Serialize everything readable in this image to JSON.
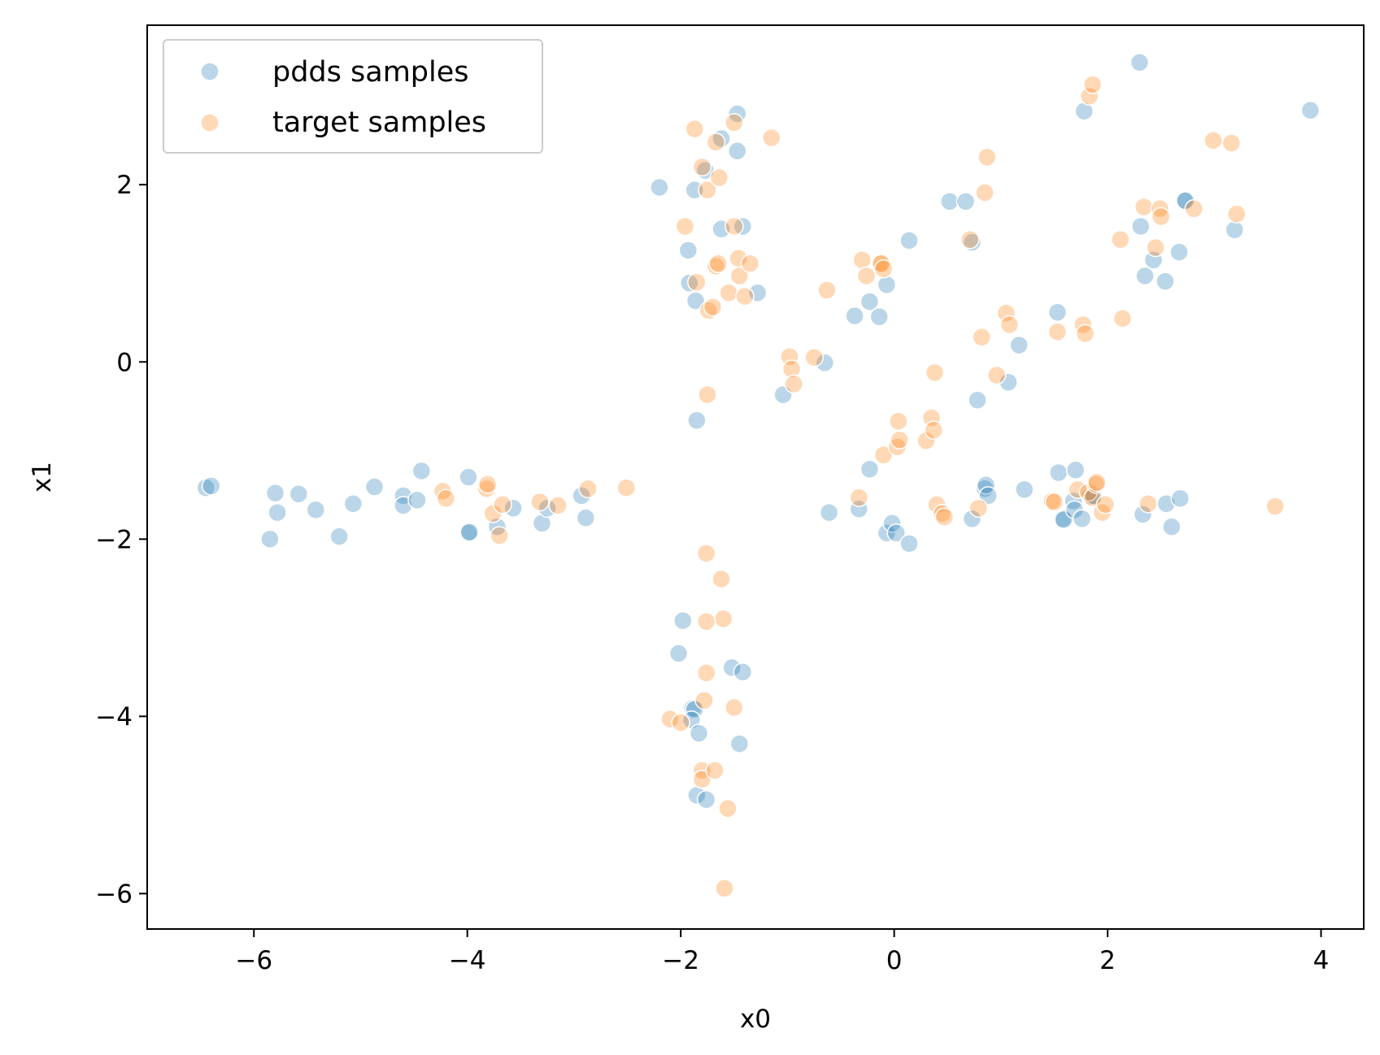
{
  "chart_data": {
    "type": "scatter",
    "xlabel": "x0",
    "ylabel": "x1",
    "xlim": [
      -7.0,
      4.4
    ],
    "ylim": [
      -6.4,
      3.8
    ],
    "xticks": [
      -6,
      -4,
      -2,
      0,
      2,
      4
    ],
    "yticks": [
      -6,
      -4,
      -2,
      0,
      2
    ],
    "xtick_labels": [
      "−6",
      "−4",
      "−2",
      "0",
      "2",
      "4"
    ],
    "ytick_labels": [
      "−6",
      "−4",
      "−2",
      "0",
      "2"
    ],
    "grid": false,
    "legend": "upper-left",
    "series": [
      {
        "name": "pdds samples",
        "color": "#1f77b4",
        "points": [
          [
            -6.45,
            -1.42
          ],
          [
            -6.4,
            -1.4
          ],
          [
            -5.85,
            -2.0
          ],
          [
            -5.8,
            -1.48
          ],
          [
            -5.78,
            -1.7
          ],
          [
            -5.58,
            -1.49
          ],
          [
            -5.42,
            -1.67
          ],
          [
            -5.2,
            -1.97
          ],
          [
            -5.07,
            -1.6
          ],
          [
            -4.87,
            -1.41
          ],
          [
            -4.6,
            -1.51
          ],
          [
            -4.6,
            -1.62
          ],
          [
            -4.47,
            -1.56
          ],
          [
            -4.43,
            -1.23
          ],
          [
            -3.99,
            -1.3
          ],
          [
            -3.99,
            -1.93
          ],
          [
            -3.98,
            -1.92
          ],
          [
            -3.72,
            -1.86
          ],
          [
            -3.57,
            -1.65
          ],
          [
            -3.3,
            -1.82
          ],
          [
            -3.25,
            -1.65
          ],
          [
            -2.93,
            -1.51
          ],
          [
            -2.89,
            -1.76
          ],
          [
            -2.2,
            1.97
          ],
          [
            -1.93,
            1.26
          ],
          [
            -1.92,
            0.89
          ],
          [
            -1.87,
            1.94
          ],
          [
            -1.86,
            0.69
          ],
          [
            -1.77,
            2.16
          ],
          [
            -1.62,
            2.52
          ],
          [
            -1.62,
            1.5
          ],
          [
            -1.47,
            2.8
          ],
          [
            -1.47,
            2.38
          ],
          [
            -1.42,
            1.53
          ],
          [
            -1.28,
            0.78
          ],
          [
            -1.85,
            -0.66
          ],
          [
            -1.98,
            -2.92
          ],
          [
            -2.02,
            -3.29
          ],
          [
            -1.89,
            -3.91
          ],
          [
            -1.87,
            -3.92
          ],
          [
            -1.9,
            -4.04
          ],
          [
            -1.83,
            -4.19
          ],
          [
            -1.85,
            -4.89
          ],
          [
            -1.76,
            -4.94
          ],
          [
            -1.52,
            -3.45
          ],
          [
            -1.42,
            -3.5
          ],
          [
            -1.45,
            -4.31
          ],
          [
            -1.04,
            -0.37
          ],
          [
            -0.65,
            -0.01
          ],
          [
            -0.37,
            0.52
          ],
          [
            -0.23,
            0.68
          ],
          [
            -0.14,
            0.51
          ],
          [
            -0.07,
            0.87
          ],
          [
            0.14,
            1.37
          ],
          [
            0.52,
            1.81
          ],
          [
            0.67,
            1.81
          ],
          [
            0.73,
            1.35
          ],
          [
            0.78,
            -0.43
          ],
          [
            1.07,
            -0.23
          ],
          [
            1.17,
            0.19
          ],
          [
            1.53,
            0.56
          ],
          [
            -0.61,
            -1.7
          ],
          [
            -0.33,
            -1.66
          ],
          [
            -0.23,
            -1.21
          ],
          [
            -0.07,
            -1.93
          ],
          [
            -0.02,
            -1.82
          ],
          [
            0.02,
            -1.93
          ],
          [
            0.14,
            -2.05
          ],
          [
            0.73,
            -1.77
          ],
          [
            0.85,
            -1.43
          ],
          [
            0.86,
            -1.39
          ],
          [
            0.88,
            -1.51
          ],
          [
            1.22,
            -1.44
          ],
          [
            1.54,
            -1.25
          ],
          [
            1.58,
            -1.77
          ],
          [
            1.59,
            -1.78
          ],
          [
            1.68,
            -1.57
          ],
          [
            1.69,
            -1.67
          ],
          [
            1.7,
            -1.22
          ],
          [
            1.76,
            -1.77
          ],
          [
            1.84,
            -1.52
          ],
          [
            1.87,
            -1.51
          ],
          [
            1.78,
            2.83
          ],
          [
            2.3,
            3.38
          ],
          [
            2.31,
            1.53
          ],
          [
            2.35,
            0.97
          ],
          [
            2.43,
            1.15
          ],
          [
            2.54,
            0.91
          ],
          [
            2.67,
            1.24
          ],
          [
            2.72,
            1.82
          ],
          [
            2.73,
            1.82
          ],
          [
            3.19,
            1.49
          ],
          [
            3.9,
            2.84
          ],
          [
            2.33,
            -1.72
          ],
          [
            2.55,
            -1.6
          ],
          [
            2.6,
            -1.86
          ],
          [
            2.68,
            -1.54
          ]
        ]
      },
      {
        "name": "target samples",
        "color": "#ff7f0e",
        "points": [
          [
            -4.23,
            -1.46
          ],
          [
            -4.2,
            -1.54
          ],
          [
            -3.82,
            -1.43
          ],
          [
            -3.81,
            -1.38
          ],
          [
            -3.76,
            -1.71
          ],
          [
            -3.7,
            -1.96
          ],
          [
            -3.67,
            -1.61
          ],
          [
            -3.32,
            -1.58
          ],
          [
            -3.15,
            -1.62
          ],
          [
            -2.87,
            -1.43
          ],
          [
            -2.51,
            -1.42
          ],
          [
            -1.87,
            2.63
          ],
          [
            -1.96,
            1.53
          ],
          [
            -1.85,
            0.9
          ],
          [
            -1.8,
            2.2
          ],
          [
            -1.75,
            1.94
          ],
          [
            -1.74,
            0.58
          ],
          [
            -1.7,
            0.62
          ],
          [
            -1.67,
            2.48
          ],
          [
            -1.67,
            1.08
          ],
          [
            -1.65,
            1.11
          ],
          [
            -1.64,
            2.08
          ],
          [
            -1.55,
            0.78
          ],
          [
            -1.5,
            2.7
          ],
          [
            -1.5,
            1.53
          ],
          [
            -1.46,
            1.17
          ],
          [
            -1.45,
            0.97
          ],
          [
            -1.4,
            0.74
          ],
          [
            -1.35,
            1.11
          ],
          [
            -1.15,
            2.53
          ],
          [
            -1.75,
            -0.37
          ],
          [
            -1.76,
            -2.16
          ],
          [
            -1.62,
            -2.45
          ],
          [
            -1.6,
            -2.9
          ],
          [
            -1.76,
            -2.93
          ],
          [
            -1.76,
            -3.51
          ],
          [
            -1.78,
            -3.82
          ],
          [
            -2.1,
            -4.03
          ],
          [
            -2.0,
            -4.07
          ],
          [
            -1.5,
            -3.9
          ],
          [
            -1.8,
            -4.61
          ],
          [
            -1.8,
            -4.71
          ],
          [
            -1.68,
            -4.61
          ],
          [
            -1.56,
            -5.04
          ],
          [
            -1.59,
            -5.94
          ],
          [
            -0.98,
            0.06
          ],
          [
            -0.96,
            -0.08
          ],
          [
            -0.94,
            -0.25
          ],
          [
            -0.75,
            0.05
          ],
          [
            -0.63,
            0.81
          ],
          [
            -0.3,
            1.15
          ],
          [
            -0.26,
            0.97
          ],
          [
            -0.13,
            1.11
          ],
          [
            -0.12,
            1.11
          ],
          [
            -0.1,
            1.05
          ],
          [
            -0.33,
            -1.53
          ],
          [
            -0.1,
            -1.05
          ],
          [
            0.03,
            -0.96
          ],
          [
            0.04,
            -0.67
          ],
          [
            0.05,
            -0.88
          ],
          [
            0.3,
            -0.89
          ],
          [
            0.35,
            -0.63
          ],
          [
            0.37,
            -0.77
          ],
          [
            0.38,
            -0.12
          ],
          [
            0.4,
            -1.61
          ],
          [
            0.45,
            -1.71
          ],
          [
            0.47,
            -1.75
          ],
          [
            0.71,
            1.38
          ],
          [
            0.79,
            -1.65
          ],
          [
            0.82,
            0.28
          ],
          [
            0.85,
            1.91
          ],
          [
            0.87,
            2.31
          ],
          [
            0.96,
            -0.15
          ],
          [
            1.05,
            0.55
          ],
          [
            1.08,
            0.42
          ],
          [
            1.48,
            -1.57
          ],
          [
            1.5,
            -1.58
          ],
          [
            1.53,
            0.34
          ],
          [
            1.72,
            -1.44
          ],
          [
            1.77,
            0.42
          ],
          [
            1.79,
            0.32
          ],
          [
            1.82,
            -1.47
          ],
          [
            1.83,
            3.0
          ],
          [
            1.86,
            3.13
          ],
          [
            1.86,
            -1.53
          ],
          [
            1.89,
            -1.38
          ],
          [
            1.9,
            -1.36
          ],
          [
            1.95,
            -1.7
          ],
          [
            1.98,
            -1.61
          ],
          [
            2.12,
            1.38
          ],
          [
            2.14,
            0.49
          ],
          [
            2.34,
            1.75
          ],
          [
            2.38,
            -1.6
          ],
          [
            2.45,
            1.29
          ],
          [
            2.49,
            1.73
          ],
          [
            2.5,
            1.64
          ],
          [
            2.81,
            1.73
          ],
          [
            2.99,
            2.5
          ],
          [
            3.16,
            2.47
          ],
          [
            3.21,
            1.67
          ],
          [
            3.57,
            -1.63
          ]
        ]
      }
    ]
  }
}
